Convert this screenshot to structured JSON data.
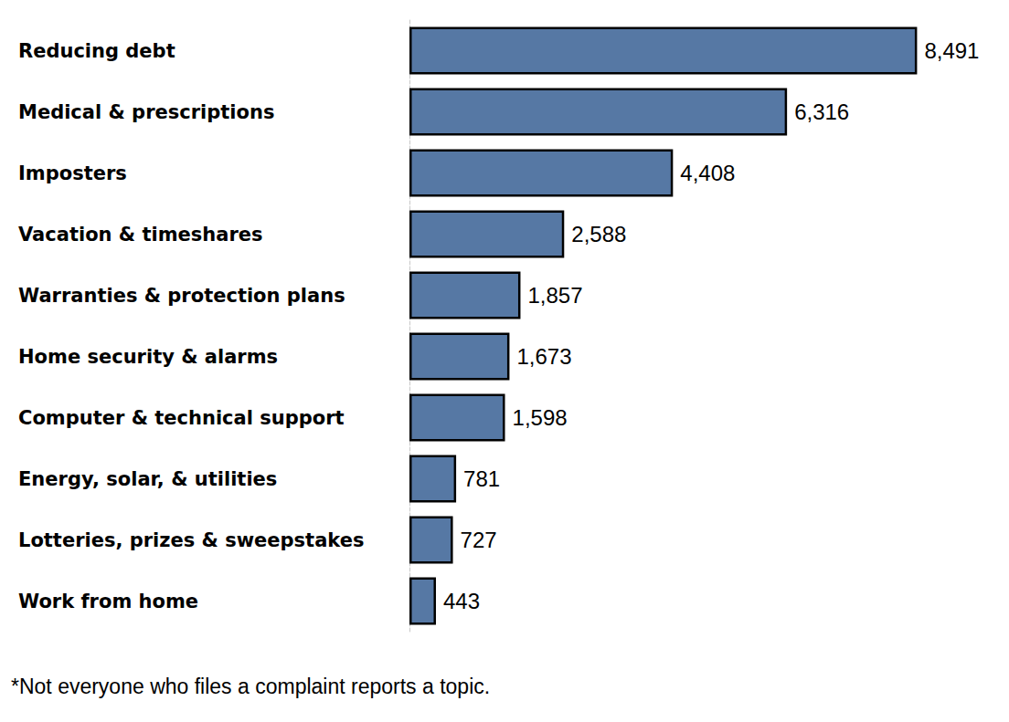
{
  "chart_data": {
    "type": "bar",
    "orientation": "horizontal",
    "categories": [
      "Reducing debt",
      "Medical & prescriptions",
      "Imposters",
      "Vacation & timeshares",
      "Warranties & protection plans",
      "Home security & alarms",
      "Computer & technical support",
      "Energy, solar, & utilities",
      "Lotteries, prizes & sweepstakes",
      "Work from home"
    ],
    "values": [
      8491,
      6316,
      4408,
      2588,
      1857,
      1673,
      1598,
      781,
      727,
      443
    ],
    "value_labels": [
      "8,491",
      "6,316",
      "4,408",
      "2,588",
      "1,857",
      "1,673",
      "1,598",
      "781",
      "727",
      "443"
    ],
    "color": "#5678a4",
    "xlim": [
      0,
      8500
    ],
    "data_labels": true,
    "tick_labels": "y",
    "grid": false,
    "footnote": "*Not everyone who files a complaint reports a topic."
  }
}
